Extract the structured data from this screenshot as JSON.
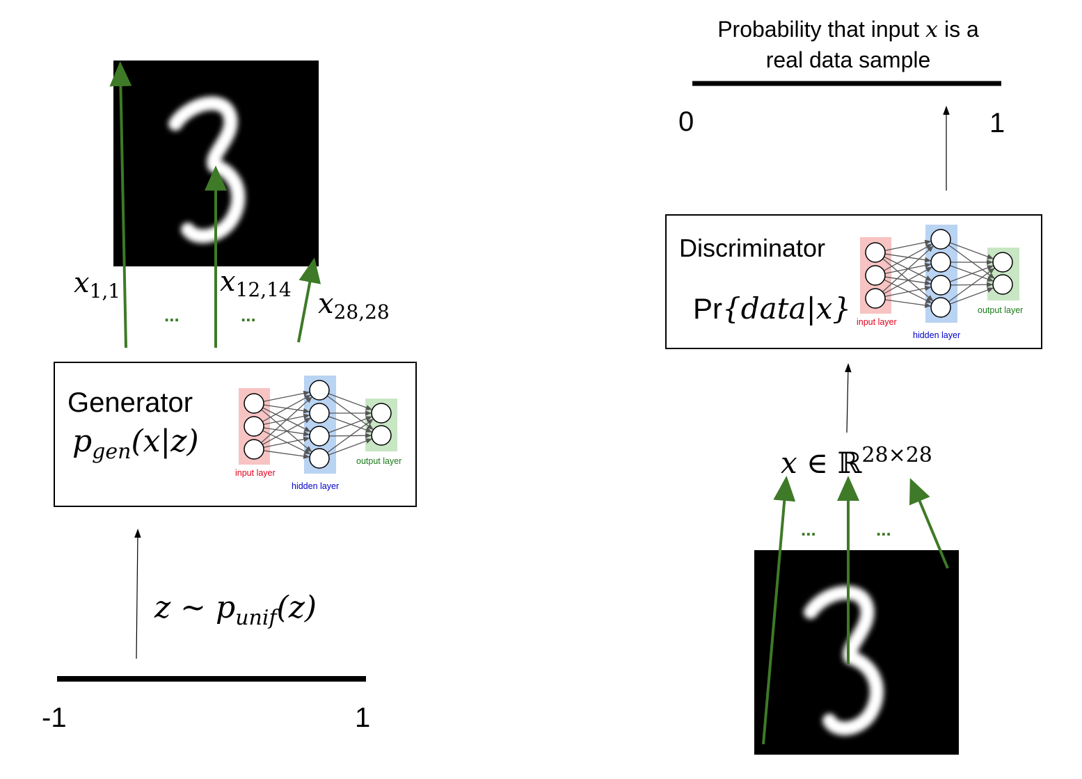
{
  "generator": {
    "title": "Generator",
    "formula_p": "p",
    "formula_sub": "gen",
    "formula_rest": "(x|z)",
    "nn_labels": {
      "input": "input layer",
      "hidden": "hidden layer",
      "output": "output layer"
    }
  },
  "discriminator": {
    "title": "Discriminator",
    "formula_pr": "Pr",
    "formula_rest": "{data|x}",
    "nn_labels": {
      "input": "input layer",
      "hidden": "hidden layer",
      "output": "output layer"
    }
  },
  "pixel_labels": {
    "x11_base": "x",
    "x11_sub": "1,1",
    "x1214_base": "x",
    "x1214_sub": "12,14",
    "x2828_base": "x",
    "x2828_sub": "28,28",
    "ellipsis": "..."
  },
  "noise": {
    "z_left": "z ~ ",
    "p": "p",
    "p_sub": "unif",
    "z_right": "(z)",
    "axis_min": "-1",
    "axis_max": "1"
  },
  "input_space": {
    "x": "x",
    "in": " ∈ ",
    "R": "ℝ",
    "sup": "28×28"
  },
  "output": {
    "title_line1_a": "Probability that input ",
    "title_line1_x": "x",
    "title_line1_b": " is a",
    "title_line2": "real data sample",
    "axis_min": "0",
    "axis_max": "1"
  },
  "colors": {
    "green_arrow": "#3e7a27",
    "input_layer_bg": "#f7c3c3",
    "hidden_layer_bg": "#b9d3f3",
    "output_layer_bg": "#c8e6c4",
    "input_label": "#e0001b",
    "hidden_label": "#0000c8",
    "output_label": "#1a7a1a"
  }
}
